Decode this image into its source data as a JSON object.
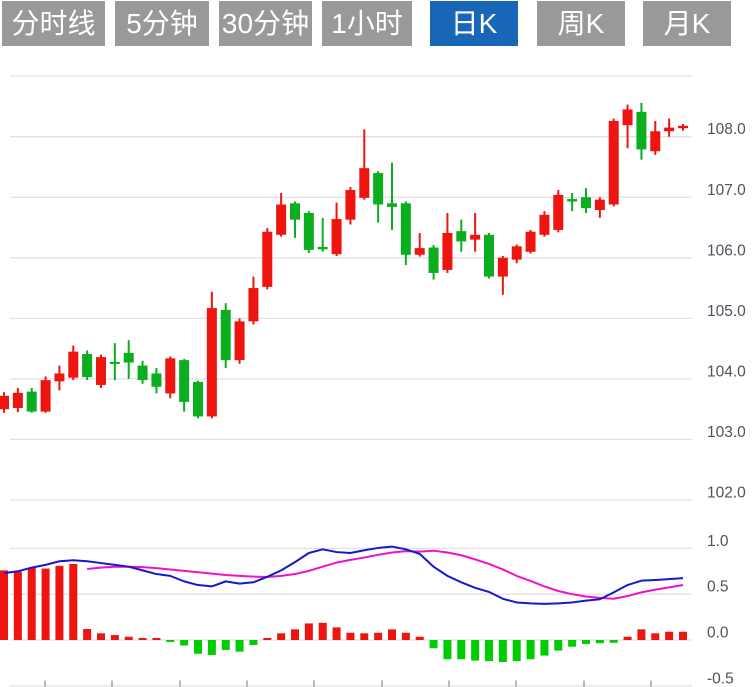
{
  "tabs": [
    {
      "label": "分时线",
      "active": false
    },
    {
      "label": "5分钟",
      "active": false
    },
    {
      "label": "30分钟",
      "active": false
    },
    {
      "label": "1小时",
      "active": false
    },
    {
      "label": "日K",
      "active": true
    },
    {
      "label": "周K",
      "active": false
    },
    {
      "label": "月K",
      "active": false
    }
  ],
  "colors": {
    "up": "#ee1410",
    "down": "#0aae1e",
    "macd_up": "#ee1410",
    "macd_down": "#00cc00",
    "dif_line": "#1717cc",
    "dea_line": "#ee12c8",
    "grid": "#e2e2e2",
    "tick": "#b0b9cf",
    "axis_text": "#4d525e",
    "tab_bg": "#999999",
    "tab_active_bg": "#1766b8",
    "tab_text": "#ffffff"
  },
  "chart_data": {
    "type": "candlestick",
    "title": "",
    "panels": [
      {
        "name": "price",
        "ylim": [
          101.8,
          109.2
        ],
        "grid": true,
        "gridline_prices": [
          109,
          108,
          107,
          106,
          105,
          104,
          103,
          102
        ],
        "yticks": [
          108,
          107,
          106,
          105,
          104,
          103,
          102
        ],
        "ytick_labels": [
          "108.0",
          "107.0",
          "106.0",
          "105.0",
          "104.0",
          "103.0",
          "102.0"
        ]
      },
      {
        "name": "macd",
        "ylim": [
          -0.55,
          1.05
        ],
        "grid": true,
        "yticks": [
          1.0,
          0.5,
          0.0,
          -0.5
        ],
        "ytick_labels": [
          "1.0",
          "0.5",
          "0.0",
          "-0.5"
        ]
      }
    ],
    "x_ticks": [
      45,
      112,
      180,
      247,
      314,
      382,
      449,
      516,
      584,
      651
    ],
    "candles_format": [
      "open",
      "high",
      "low",
      "close"
    ],
    "candles": [
      [
        103.5,
        103.78,
        103.44,
        103.72
      ],
      [
        103.52,
        103.85,
        103.45,
        103.77
      ],
      [
        103.79,
        103.85,
        103.44,
        103.46
      ],
      [
        103.46,
        104.04,
        103.44,
        103.98
      ],
      [
        103.96,
        104.22,
        103.81,
        104.09
      ],
      [
        104.02,
        104.55,
        103.98,
        104.45
      ],
      [
        104.41,
        104.47,
        103.98,
        104.03
      ],
      [
        103.9,
        104.4,
        103.85,
        104.36
      ],
      [
        104.28,
        104.59,
        103.98,
        104.26
      ],
      [
        104.43,
        104.64,
        104.0,
        104.27
      ],
      [
        104.22,
        104.3,
        103.92,
        103.98
      ],
      [
        104.09,
        104.18,
        103.76,
        103.87
      ],
      [
        103.76,
        104.37,
        103.68,
        104.34
      ],
      [
        104.31,
        104.33,
        103.46,
        103.62
      ],
      [
        103.95,
        103.97,
        103.35,
        103.38
      ],
      [
        103.38,
        105.44,
        103.35,
        105.17
      ],
      [
        105.14,
        105.25,
        104.18,
        104.31
      ],
      [
        104.31,
        105.0,
        104.25,
        104.95
      ],
      [
        104.95,
        105.69,
        104.9,
        105.5
      ],
      [
        105.52,
        106.49,
        105.48,
        106.43
      ],
      [
        106.38,
        107.07,
        106.35,
        106.88
      ],
      [
        106.9,
        106.93,
        106.33,
        106.63
      ],
      [
        106.74,
        106.77,
        106.08,
        106.13
      ],
      [
        106.18,
        106.66,
        106.1,
        106.14
      ],
      [
        106.06,
        106.91,
        106.03,
        106.64
      ],
      [
        106.63,
        107.17,
        106.55,
        107.12
      ],
      [
        106.99,
        108.12,
        106.96,
        107.48
      ],
      [
        107.4,
        107.43,
        106.58,
        106.88
      ],
      [
        106.9,
        107.57,
        106.46,
        106.84
      ],
      [
        106.9,
        106.93,
        105.88,
        106.05
      ],
      [
        106.05,
        106.41,
        106.02,
        106.16
      ],
      [
        106.17,
        106.21,
        105.64,
        105.75
      ],
      [
        105.8,
        106.74,
        105.75,
        106.41
      ],
      [
        106.44,
        106.63,
        106.1,
        106.27
      ],
      [
        106.3,
        106.74,
        106.1,
        106.38
      ],
      [
        106.38,
        106.41,
        105.66,
        105.69
      ],
      [
        105.69,
        106.03,
        105.39,
        106.0
      ],
      [
        105.97,
        106.22,
        105.91,
        106.19
      ],
      [
        106.1,
        106.46,
        106.07,
        106.43
      ],
      [
        106.38,
        106.77,
        106.35,
        106.71
      ],
      [
        106.46,
        107.12,
        106.42,
        107.04
      ],
      [
        106.97,
        107.07,
        106.77,
        106.93
      ],
      [
        107.0,
        107.15,
        106.74,
        106.82
      ],
      [
        106.79,
        107.0,
        106.66,
        106.96
      ],
      [
        106.88,
        108.3,
        106.85,
        108.26
      ],
      [
        108.19,
        108.53,
        107.81,
        108.45
      ],
      [
        108.41,
        108.56,
        107.62,
        107.79
      ],
      [
        107.76,
        108.26,
        107.7,
        108.09
      ],
      [
        108.09,
        108.3,
        108.0,
        108.15
      ],
      [
        108.14,
        108.21,
        108.1,
        108.18
      ]
    ],
    "macd_hist": [
      0.76,
      0.745,
      0.79,
      0.78,
      0.81,
      0.83,
      0.12,
      0.073,
      0.054,
      0.036,
      0.015,
      0.008,
      -0.015,
      -0.06,
      -0.15,
      -0.163,
      -0.108,
      -0.127,
      -0.054,
      0.02,
      0.073,
      0.116,
      0.181,
      0.188,
      0.138,
      0.079,
      0.073,
      0.079,
      0.116,
      0.079,
      0.036,
      -0.09,
      -0.21,
      -0.21,
      -0.225,
      -0.23,
      -0.24,
      -0.23,
      -0.21,
      -0.17,
      -0.116,
      -0.073,
      -0.043,
      -0.035,
      -0.03,
      0.036,
      0.116,
      0.073,
      0.09,
      0.09
    ],
    "dif": [
      0.73,
      0.75,
      0.79,
      0.82,
      0.86,
      0.87,
      0.86,
      0.84,
      0.82,
      0.8,
      0.76,
      0.72,
      0.7,
      0.64,
      0.6,
      0.585,
      0.64,
      0.615,
      0.63,
      0.69,
      0.76,
      0.85,
      0.95,
      0.99,
      0.96,
      0.95,
      0.98,
      1.005,
      1.02,
      0.99,
      0.94,
      0.8,
      0.7,
      0.63,
      0.57,
      0.525,
      0.45,
      0.41,
      0.4,
      0.395,
      0.4,
      0.41,
      0.43,
      0.445,
      0.52,
      0.6,
      0.648,
      0.655,
      0.665,
      0.675
    ],
    "dea": [
      null,
      null,
      null,
      null,
      null,
      null,
      0.775,
      0.79,
      0.8,
      0.8,
      0.795,
      0.785,
      0.77,
      0.755,
      0.74,
      0.725,
      0.71,
      0.7,
      0.692,
      0.688,
      0.7,
      0.72,
      0.755,
      0.8,
      0.845,
      0.875,
      0.9,
      0.93,
      0.955,
      0.97,
      0.965,
      0.975,
      0.955,
      0.925,
      0.88,
      0.83,
      0.77,
      0.7,
      0.645,
      0.585,
      0.535,
      0.5,
      0.475,
      0.46,
      0.45,
      0.48,
      0.52,
      0.55,
      0.575,
      0.6
    ]
  }
}
